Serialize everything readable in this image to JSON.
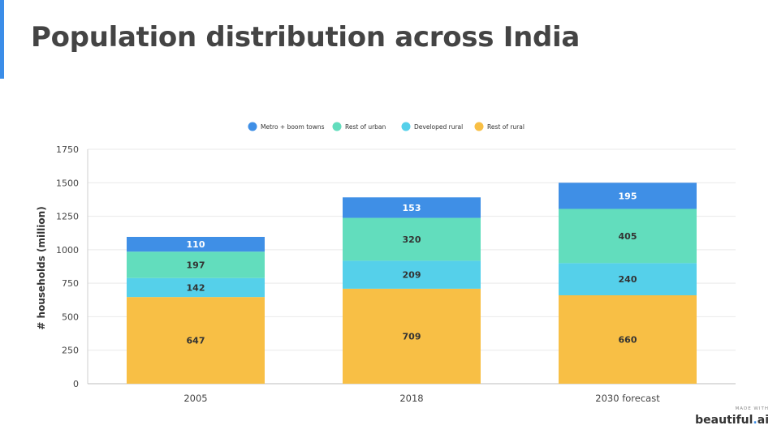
{
  "title": "Population distribution across India",
  "colors": {
    "accent": "#3b8de8",
    "title": "#444444",
    "axis_text": "#444444",
    "grid": "#e9e9e9"
  },
  "branding": {
    "made_with": "MADE WITH",
    "name": "beautiful",
    "dot": ".",
    "suffix": "ai"
  },
  "chart_data": {
    "type": "bar",
    "stacked": true,
    "categories": [
      "2005",
      "2018",
      "2030 forecast"
    ],
    "ylabel": "# households (million)",
    "xlabel": "",
    "ylim": [
      0,
      1750
    ],
    "yticks": [
      0,
      250,
      500,
      750,
      1000,
      1250,
      1500,
      1750
    ],
    "yticks_labels": [
      "0",
      "250",
      "500",
      "750",
      "1000",
      "1250",
      "1500",
      "1750"
    ],
    "grid": true,
    "legend": "top-center",
    "series": [
      {
        "name": "Rest of rural",
        "color": "#f8bf45",
        "values": [
          647,
          709,
          660
        ],
        "labels": [
          "647",
          "709",
          "660"
        ]
      },
      {
        "name": "Developed rural",
        "color": "#55d0ea",
        "values": [
          142,
          209,
          240
        ],
        "labels": [
          "142",
          "209",
          "240"
        ]
      },
      {
        "name": "Rest of urban",
        "color": "#62ddbd",
        "values": [
          197,
          320,
          405
        ],
        "labels": [
          "197",
          "320",
          "405"
        ]
      },
      {
        "name": "Metro + boom towns",
        "color": "#3f8fe6",
        "values": [
          110,
          153,
          195
        ],
        "labels": [
          "110",
          "153",
          "195"
        ]
      }
    ],
    "legend_order": [
      "Metro + boom towns",
      "Rest of urban",
      "Developed rural",
      "Rest of rural"
    ]
  }
}
